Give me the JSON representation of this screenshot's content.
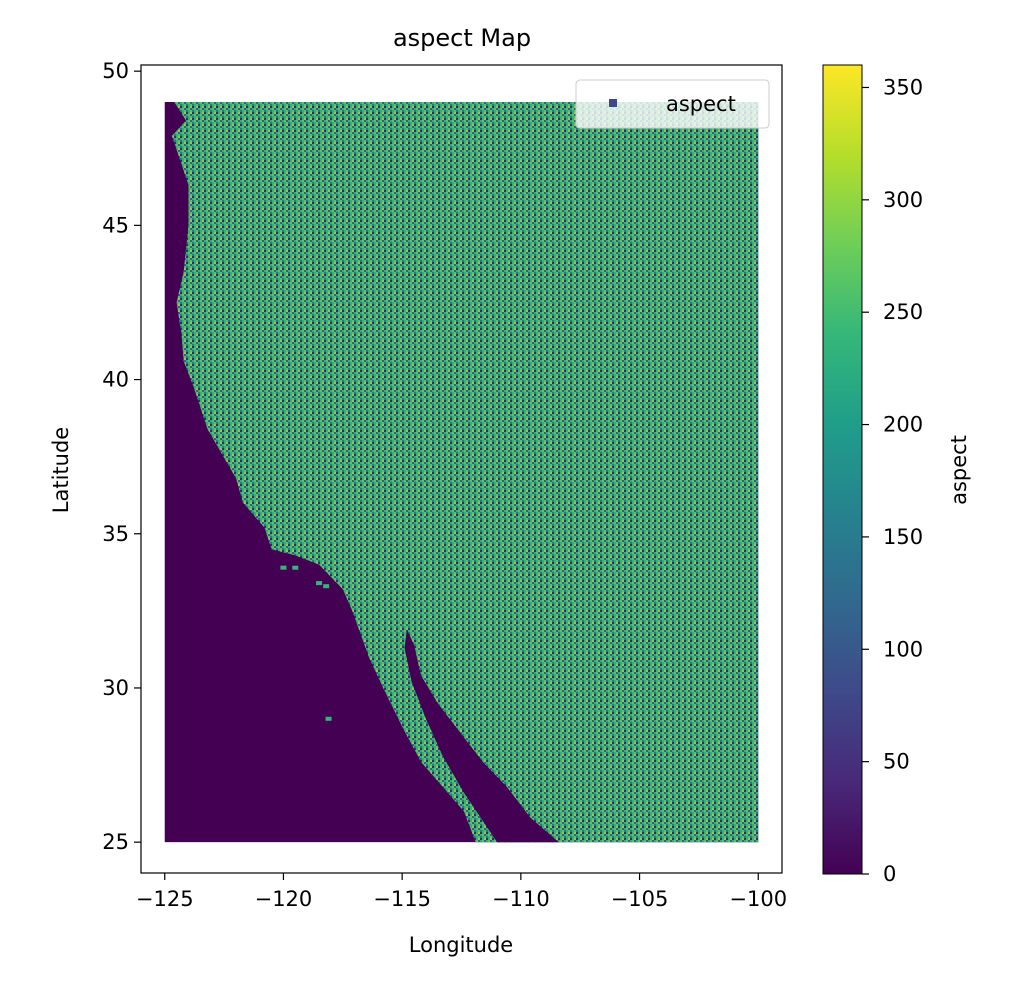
{
  "chart_data": {
    "type": "heatmap",
    "title": "aspect Map",
    "xlabel": "Longitude",
    "ylabel": "Latitude",
    "xlim": [
      -126,
      -99
    ],
    "ylim": [
      24,
      50.2
    ],
    "data_extent": {
      "lon": [
        -125,
        -100
      ],
      "lat": [
        25,
        49
      ]
    },
    "x_ticks": [
      -125,
      -120,
      -115,
      -110,
      -105,
      -100
    ],
    "x_tick_labels": [
      "−125",
      "−120",
      "−115",
      "−110",
      "−105",
      "−100"
    ],
    "y_ticks": [
      25,
      30,
      35,
      40,
      45,
      50
    ],
    "y_tick_labels": [
      "25",
      "30",
      "35",
      "40",
      "45",
      "50"
    ],
    "legend": {
      "label": "aspect",
      "location": "upper right"
    },
    "colorbar": {
      "label": "aspect",
      "colormap": "viridis",
      "range": [
        0,
        360
      ],
      "ticks": [
        0,
        50,
        100,
        150,
        200,
        250,
        300,
        350
      ],
      "tick_labels": [
        "0",
        "50",
        "100",
        "150",
        "200",
        "250",
        "300",
        "350"
      ]
    },
    "colors": {
      "ocean": "#440154",
      "viridis_stops": [
        "#440154",
        "#482878",
        "#3e4989",
        "#31688e",
        "#26828e",
        "#1f9e89",
        "#35b779",
        "#6ece58",
        "#b5de2b",
        "#fde725"
      ]
    },
    "coastline": [
      [
        -124.6,
        49
      ],
      [
        -124.1,
        48.4
      ],
      [
        -124.7,
        47.9
      ],
      [
        -124.3,
        47.0
      ],
      [
        -124.0,
        46.3
      ],
      [
        -124.0,
        45.0
      ],
      [
        -124.2,
        43.5
      ],
      [
        -124.5,
        42.5
      ],
      [
        -124.3,
        41.5
      ],
      [
        -124.2,
        40.6
      ],
      [
        -123.8,
        39.8
      ],
      [
        -123.2,
        38.4
      ],
      [
        -122.6,
        37.6
      ],
      [
        -122.0,
        36.8
      ],
      [
        -121.7,
        36.0
      ],
      [
        -120.8,
        35.2
      ],
      [
        -120.5,
        34.5
      ],
      [
        -119.5,
        34.3
      ],
      [
        -118.5,
        34.0
      ],
      [
        -117.5,
        33.2
      ],
      [
        -117.1,
        32.5
      ],
      [
        -116.4,
        31.0
      ],
      [
        -115.8,
        30.0
      ],
      [
        -114.9,
        28.6
      ],
      [
        -114.2,
        27.6
      ],
      [
        -113.3,
        26.8
      ],
      [
        -112.4,
        26.0
      ],
      [
        -111.9,
        25.0
      ]
    ],
    "gulf": [
      [
        -114.8,
        31.9
      ],
      [
        -114.5,
        31.4
      ],
      [
        -114.2,
        30.4
      ],
      [
        -113.5,
        29.5
      ],
      [
        -112.5,
        28.5
      ],
      [
        -111.6,
        27.6
      ],
      [
        -110.6,
        26.8
      ],
      [
        -109.6,
        25.8
      ],
      [
        -108.4,
        25.0
      ],
      [
        -111.0,
        25.0
      ],
      [
        -112.4,
        26.6
      ],
      [
        -113.3,
        27.8
      ],
      [
        -114.0,
        29.0
      ],
      [
        -114.6,
        30.2
      ],
      [
        -114.9,
        31.3
      ]
    ],
    "islands": [
      [
        -118.5,
        33.4
      ],
      [
        -118.2,
        33.3
      ],
      [
        -119.5,
        33.9
      ],
      [
        -120.0,
        33.9
      ],
      [
        -118.1,
        29.0
      ]
    ]
  }
}
